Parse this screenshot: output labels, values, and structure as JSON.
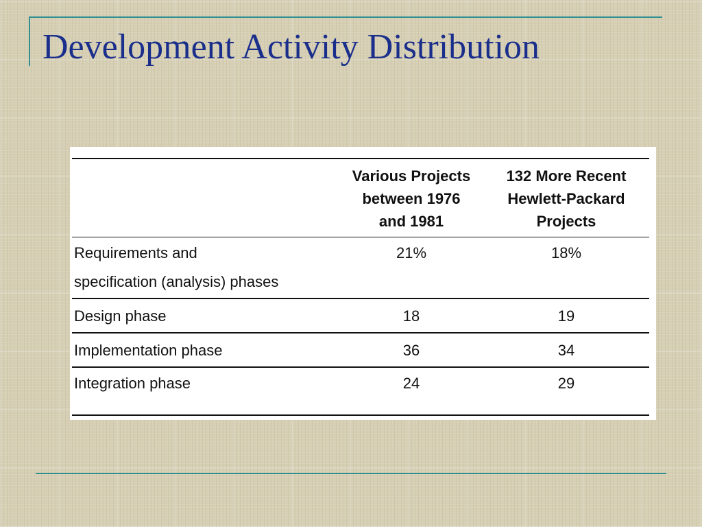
{
  "slide": {
    "title": "Development Activity Distribution"
  },
  "table": {
    "columns": [
      {
        "lines": [
          "Various Projects",
          "between 1976",
          "and 1981"
        ]
      },
      {
        "lines": [
          "132 More Recent",
          "Hewlett-Packard",
          "Projects"
        ]
      }
    ],
    "rows": [
      {
        "label_lines": [
          "Requirements and",
          "specification  (analysis)  phases"
        ],
        "values": [
          "21%",
          "18%"
        ]
      },
      {
        "label_lines": [
          "Design phase"
        ],
        "values": [
          "18",
          "19"
        ]
      },
      {
        "label_lines": [
          "Implementation phase"
        ],
        "values": [
          "36",
          "34"
        ]
      },
      {
        "label_lines": [
          "Integration phase"
        ],
        "values": [
          "24",
          "29"
        ]
      }
    ]
  },
  "colors": {
    "title": "#1a2e8c",
    "accent_rule": "#2f8f8f",
    "background": "#d6cfb4"
  }
}
